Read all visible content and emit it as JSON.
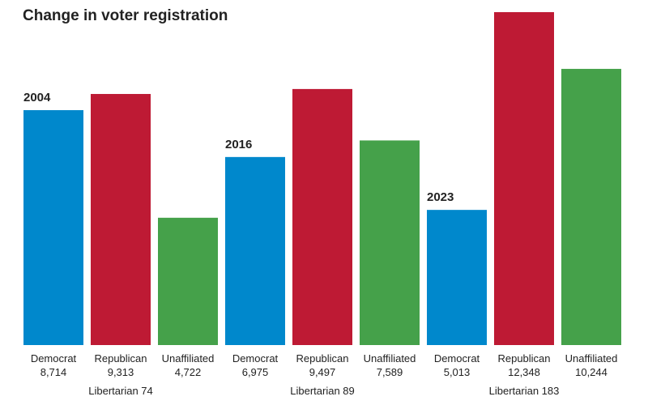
{
  "chart_data": {
    "type": "bar",
    "title": "Change in voter registration",
    "groups": [
      {
        "year": "2004",
        "bars": [
          {
            "party": "Democrat",
            "value": 8714,
            "value_label": "8,714",
            "color": "#0088cc"
          },
          {
            "party": "Republican",
            "value": 9313,
            "value_label": "9,313",
            "color": "#be1a34"
          },
          {
            "party": "Unaffiliated",
            "value": 4722,
            "value_label": "4,722",
            "color": "#45a14a"
          }
        ],
        "libertarian_label": "Libertarian 74",
        "libertarian": 74
      },
      {
        "year": "2016",
        "bars": [
          {
            "party": "Democrat",
            "value": 6975,
            "value_label": "6,975",
            "color": "#0088cc"
          },
          {
            "party": "Republican",
            "value": 9497,
            "value_label": "9,497",
            "color": "#be1a34"
          },
          {
            "party": "Unaffiliated",
            "value": 7589,
            "value_label": "7,589",
            "color": "#45a14a"
          }
        ],
        "libertarian_label": "Libertarian 89",
        "libertarian": 89
      },
      {
        "year": "2023",
        "bars": [
          {
            "party": "Democrat",
            "value": 5013,
            "value_label": "5,013",
            "color": "#0088cc"
          },
          {
            "party": "Republican",
            "value": 12348,
            "value_label": "12,348",
            "color": "#be1a34"
          },
          {
            "party": "Unaffiliated",
            "value": 10244,
            "value_label": "10,244",
            "color": "#45a14a"
          }
        ],
        "libertarian_label": "Libertarian 183",
        "libertarian": 183
      }
    ],
    "ylim": [
      0,
      12348
    ],
    "grid": false,
    "legend": "none"
  }
}
